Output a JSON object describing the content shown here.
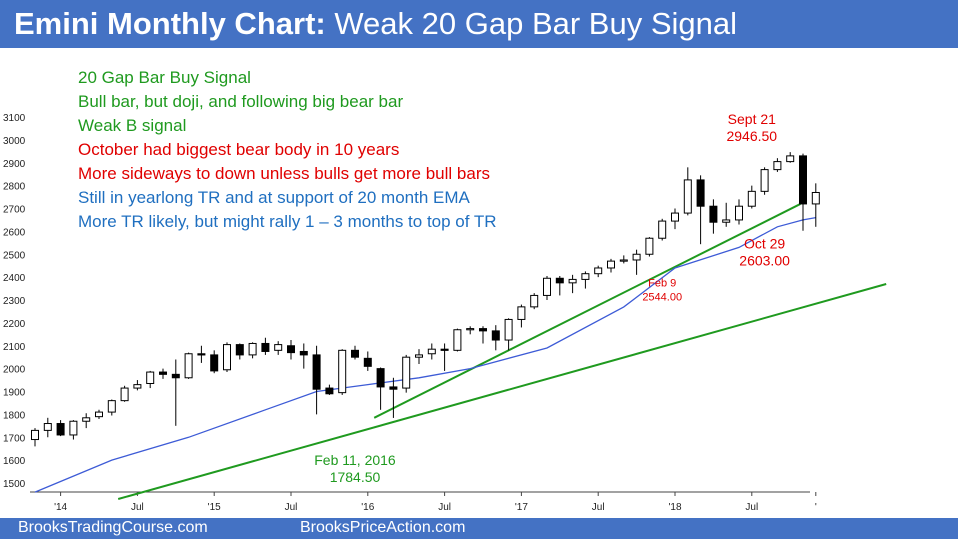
{
  "title": {
    "bold": "Emini Monthly Chart:",
    "rest": "Weak 20 Gap Bar Buy Signal"
  },
  "footer": {
    "left": "BrooksTradingCourse.com",
    "right": "BrooksPriceAction.com"
  },
  "notes": [
    {
      "text": "20 Gap Bar Buy Signal",
      "color": "#1f9a1f"
    },
    {
      "text": "Bull bar, but doji, and following big bear bar",
      "color": "#1f9a1f"
    },
    {
      "text": "Weak B signal",
      "color": "#1f9a1f"
    },
    {
      "text": "October had biggest bear body in 10 years",
      "color": "#e00000"
    },
    {
      "text": "More sideways to down unless bulls get more bull bars",
      "color": "#e00000"
    },
    {
      "text": "Still in yearlong TR and at support of 20 month EMA",
      "color": "#1f6fc0"
    },
    {
      "text": "More TR likely, but might rally 1 – 3 months to top of TR",
      "color": "#1f6fc0"
    }
  ],
  "annotations": [
    {
      "lines": [
        "Sept 21",
        "2946.50"
      ],
      "color": "#e00000",
      "index": 56,
      "y": 3070,
      "size": 14
    },
    {
      "lines": [
        "Oct 29",
        "2603.00"
      ],
      "color": "#e00000",
      "index": 57,
      "y": 2525,
      "size": 14
    },
    {
      "lines": [
        "Feb 9",
        "2544.00"
      ],
      "color": "#e00000",
      "index": 49,
      "y": 2360,
      "size": 11
    },
    {
      "lines": [
        "Feb 11, 2016",
        "1784.50"
      ],
      "color": "#1f9a1f",
      "index": 25,
      "y": 1578,
      "size": 14
    }
  ],
  "chart_data": {
    "type": "candlestick",
    "ylim": [
      1430,
      3160
    ],
    "yticks": [
      1500,
      1600,
      1700,
      1800,
      1900,
      2000,
      2100,
      2200,
      2300,
      2400,
      2500,
      2600,
      2700,
      2800,
      2900,
      3000,
      3100
    ],
    "xticks": [
      {
        "label": "'14",
        "index": 2
      },
      {
        "label": "Jul",
        "index": 8
      },
      {
        "label": "'15",
        "index": 14
      },
      {
        "label": "Jul",
        "index": 20
      },
      {
        "label": "'16",
        "index": 26
      },
      {
        "label": "Jul",
        "index": 32
      },
      {
        "label": "'17",
        "index": 38
      },
      {
        "label": "Jul",
        "index": 44
      },
      {
        "label": "'18",
        "index": 50
      },
      {
        "label": "Jul",
        "index": 56
      },
      {
        "label": "'",
        "index": 61
      }
    ],
    "ohlc": [
      [
        1690,
        1740,
        1660,
        1730
      ],
      [
        1730,
        1785,
        1700,
        1760
      ],
      [
        1760,
        1775,
        1705,
        1710
      ],
      [
        1710,
        1775,
        1690,
        1770
      ],
      [
        1770,
        1805,
        1740,
        1785
      ],
      [
        1790,
        1820,
        1780,
        1810
      ],
      [
        1810,
        1865,
        1795,
        1860
      ],
      [
        1860,
        1925,
        1855,
        1915
      ],
      [
        1915,
        1950,
        1905,
        1930
      ],
      [
        1935,
        1990,
        1915,
        1985
      ],
      [
        1985,
        2000,
        1955,
        1975
      ],
      [
        1975,
        2040,
        1750,
        1960
      ],
      [
        1960,
        2070,
        1955,
        2065
      ],
      [
        2065,
        2100,
        2025,
        2060
      ],
      [
        2060,
        2080,
        1980,
        1990
      ],
      [
        1995,
        2115,
        1985,
        2105
      ],
      [
        2105,
        2110,
        2040,
        2060
      ],
      [
        2060,
        2115,
        2045,
        2110
      ],
      [
        2110,
        2135,
        2060,
        2075
      ],
      [
        2080,
        2120,
        2060,
        2105
      ],
      [
        2100,
        2125,
        2040,
        2070
      ],
      [
        2075,
        2110,
        2000,
        2060
      ],
      [
        2060,
        2100,
        1800,
        1910
      ],
      [
        1915,
        1930,
        1885,
        1890
      ],
      [
        1895,
        2085,
        1885,
        2080
      ],
      [
        2080,
        2100,
        2040,
        2050
      ],
      [
        2045,
        2075,
        1990,
        2010
      ],
      [
        2000,
        2005,
        1820,
        1920
      ],
      [
        1920,
        1960,
        1784.5,
        1910
      ],
      [
        1915,
        2060,
        1895,
        2050
      ],
      [
        2050,
        2085,
        2020,
        2060
      ],
      [
        2065,
        2110,
        2040,
        2085
      ],
      [
        2085,
        2110,
        1990,
        2080
      ],
      [
        2080,
        2175,
        2075,
        2170
      ],
      [
        2170,
        2185,
        2150,
        2175
      ],
      [
        2175,
        2185,
        2110,
        2165
      ],
      [
        2165,
        2190,
        2080,
        2125
      ],
      [
        2125,
        2220,
        2080,
        2215
      ],
      [
        2215,
        2280,
        2180,
        2270
      ],
      [
        2270,
        2330,
        2260,
        2320
      ],
      [
        2320,
        2405,
        2300,
        2395
      ],
      [
        2395,
        2405,
        2320,
        2375
      ],
      [
        2375,
        2410,
        2330,
        2390
      ],
      [
        2390,
        2425,
        2350,
        2415
      ],
      [
        2415,
        2450,
        2400,
        2440
      ],
      [
        2440,
        2480,
        2420,
        2470
      ],
      [
        2470,
        2495,
        2460,
        2475
      ],
      [
        2475,
        2520,
        2410,
        2500
      ],
      [
        2500,
        2575,
        2490,
        2570
      ],
      [
        2570,
        2655,
        2560,
        2645
      ],
      [
        2645,
        2700,
        2610,
        2680
      ],
      [
        2680,
        2880,
        2670,
        2825
      ],
      [
        2825,
        2845,
        2544,
        2710
      ],
      [
        2710,
        2740,
        2590,
        2640
      ],
      [
        2640,
        2725,
        2620,
        2650
      ],
      [
        2650,
        2740,
        2630,
        2710
      ],
      [
        2710,
        2800,
        2700,
        2775
      ],
      [
        2775,
        2880,
        2760,
        2870
      ],
      [
        2870,
        2920,
        2860,
        2905
      ],
      [
        2905,
        2946.5,
        2900,
        2930
      ],
      [
        2930,
        2940,
        2603,
        2720
      ],
      [
        2720,
        2810,
        2620,
        2770
      ]
    ],
    "ema": [
      [
        0,
        1460
      ],
      [
        6,
        1600
      ],
      [
        12,
        1700
      ],
      [
        18,
        1820
      ],
      [
        22,
        1900
      ],
      [
        26,
        1930
      ],
      [
        30,
        1960
      ],
      [
        34,
        2000
      ],
      [
        40,
        2090
      ],
      [
        46,
        2270
      ],
      [
        50,
        2440
      ],
      [
        55,
        2530
      ],
      [
        58,
        2620
      ],
      [
        60,
        2650
      ],
      [
        61,
        2660
      ]
    ],
    "lines": [
      {
        "color": "#1f9a1f",
        "points": [
          [
            6.5,
            1430
          ],
          [
            66.5,
            2370
          ]
        ]
      },
      {
        "color": "#1f9a1f",
        "points": [
          [
            26.5,
            1785
          ],
          [
            59.8,
            2720
          ]
        ]
      }
    ]
  }
}
